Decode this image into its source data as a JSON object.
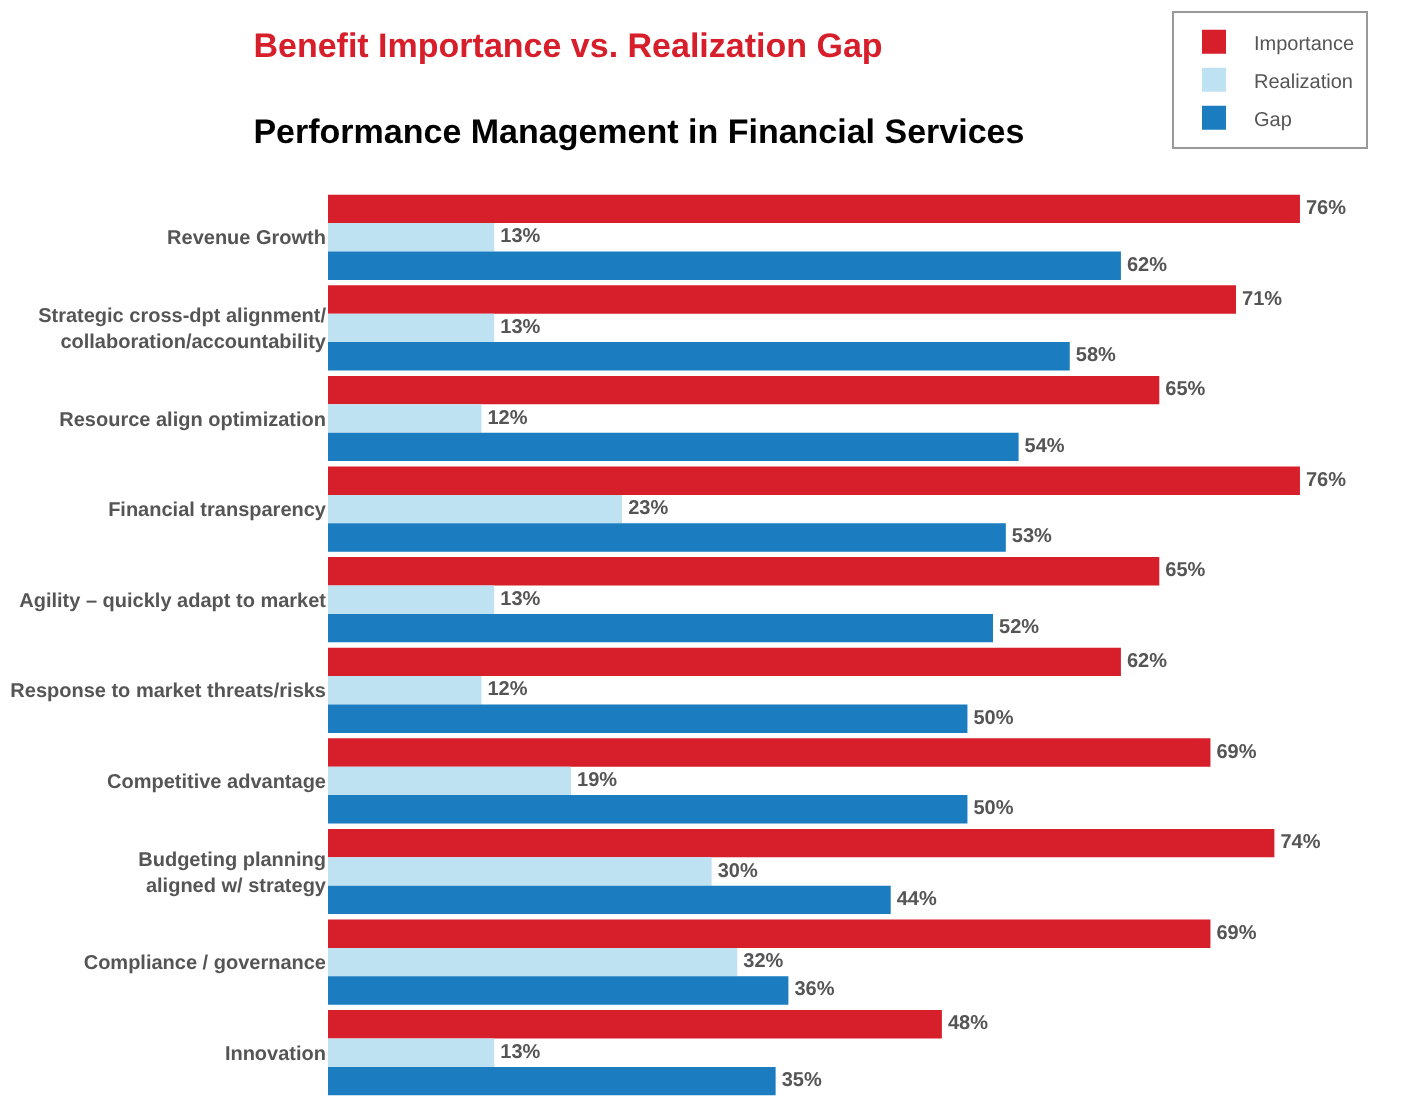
{
  "chart_data": {
    "type": "bar",
    "orientation": "horizontal",
    "title": "Benefit Importance vs. Realization Gap",
    "subtitle": "Performance Management in Financial Services",
    "categories": [
      "Revenue Growth",
      "Strategic cross-dpt alignment/\ncollaboration/accountability",
      "Resource align optimization",
      "Financial transparency",
      "Agility – quickly adapt to market",
      "Response to market threats/risks",
      "Competitive advantage",
      "Budgeting planning\naligned w/ strategy",
      "Compliance / governance",
      "Innovation"
    ],
    "series": [
      {
        "name": "Importance",
        "color": "#d71f2b",
        "values": [
          76,
          71,
          65,
          76,
          65,
          62,
          69,
          74,
          69,
          48
        ],
        "value_labels": [
          "76%",
          "71%",
          "65%",
          "76%",
          "65%",
          "62%",
          "69%",
          "74%",
          "69%",
          "48%"
        ]
      },
      {
        "name": "Realization",
        "color": "#bfe2f2",
        "values": [
          13,
          13,
          12,
          23,
          13,
          12,
          19,
          30,
          32,
          13
        ],
        "value_labels": [
          "13%",
          "13%",
          "12%",
          "23%",
          "13%",
          "12%",
          "19%",
          "30%",
          "32%",
          "13%"
        ]
      },
      {
        "name": "Gap",
        "color": "#1b7cc0",
        "values": [
          62,
          58,
          54,
          53,
          52,
          50,
          50,
          44,
          36,
          35
        ],
        "value_labels": [
          "62%",
          "58%",
          "54%",
          "53%",
          "52%",
          "50%",
          "50%",
          "44%",
          "36%",
          "35%"
        ]
      }
    ],
    "legend": "top right"
  }
}
